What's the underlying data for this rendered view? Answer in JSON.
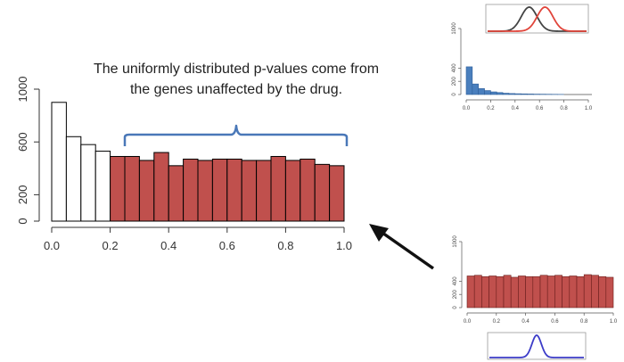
{
  "annotation": {
    "text": "The uniformly distributed p-values come from the genes unaffected by the drug.",
    "brace_color": "#4a78b8",
    "arrow_color": "#111111"
  },
  "chart_data": [
    {
      "id": "main-histogram",
      "type": "bar",
      "title": "",
      "xlabel": "",
      "ylabel": "",
      "bin_width": 0.05,
      "x": [
        0.025,
        0.075,
        0.125,
        0.175,
        0.225,
        0.275,
        0.325,
        0.375,
        0.425,
        0.475,
        0.525,
        0.575,
        0.625,
        0.675,
        0.725,
        0.775,
        0.825,
        0.875,
        0.925,
        0.975
      ],
      "values": [
        900,
        640,
        580,
        530,
        490,
        490,
        460,
        520,
        420,
        470,
        460,
        470,
        470,
        460,
        460,
        490,
        460,
        470,
        430,
        420
      ],
      "highlight_from": 0.2,
      "colors": {
        "plain_fill": "#ffffff",
        "highlight_fill": "#c0504d",
        "stroke": "#000000"
      },
      "xlim": [
        0,
        1.0
      ],
      "ylim": [
        0,
        1000
      ],
      "xticks": [
        0.0,
        0.2,
        0.4,
        0.6,
        0.8,
        1.0
      ],
      "xtick_labels": [
        "0.0",
        "0.2",
        "0.4",
        "0.6",
        "0.8",
        "1.0"
      ],
      "yticks": [
        0,
        200,
        600,
        1000
      ],
      "ytick_labels": [
        "0",
        "200",
        "600",
        "1000"
      ]
    },
    {
      "id": "top-right-densities",
      "type": "line",
      "series": [
        {
          "center": 0.42,
          "sd": 0.08,
          "color": "#444444"
        },
        {
          "center": 0.58,
          "sd": 0.08,
          "color": "#e0443a"
        }
      ],
      "xlim": [
        0,
        1
      ]
    },
    {
      "id": "blue-histogram",
      "type": "bar",
      "bin_width": 0.05,
      "x": [
        0.025,
        0.075,
        0.125,
        0.175,
        0.225,
        0.275,
        0.325,
        0.375,
        0.425,
        0.475,
        0.525,
        0.575,
        0.625,
        0.675,
        0.725,
        0.775
      ],
      "values": [
        420,
        160,
        90,
        60,
        40,
        30,
        20,
        15,
        12,
        10,
        8,
        6,
        5,
        4,
        3,
        2
      ],
      "color": "#4a7fbd",
      "xlim": [
        0,
        1.0
      ],
      "ylim": [
        0,
        1000
      ],
      "xticks": [
        0.0,
        0.2,
        0.4,
        0.6,
        0.8,
        1.0
      ],
      "xtick_labels": [
        "0.0",
        "0.2",
        "0.4",
        "0.6",
        "0.8",
        "1.0"
      ],
      "yticks": [
        0,
        200,
        400,
        1000
      ],
      "ytick_labels": [
        "0",
        "200",
        "400",
        "1000"
      ]
    },
    {
      "id": "bottom-right-histogram",
      "type": "bar",
      "bin_width": 0.05,
      "x": [
        0.025,
        0.075,
        0.125,
        0.175,
        0.225,
        0.275,
        0.325,
        0.375,
        0.425,
        0.475,
        0.525,
        0.575,
        0.625,
        0.675,
        0.725,
        0.775,
        0.825,
        0.875,
        0.925,
        0.975
      ],
      "values": [
        480,
        490,
        470,
        480,
        470,
        490,
        460,
        480,
        470,
        470,
        490,
        480,
        490,
        470,
        480,
        470,
        500,
        490,
        470,
        460
      ],
      "color": "#c0504d",
      "xlim": [
        0,
        1.0
      ],
      "ylim": [
        0,
        1000
      ],
      "xticks": [
        0.0,
        0.2,
        0.4,
        0.6,
        0.8,
        1.0
      ],
      "xtick_labels": [
        "0.0",
        "0.2",
        "0.4",
        "0.6",
        "0.8",
        "1.0"
      ],
      "yticks": [
        0,
        200,
        400,
        1000
      ],
      "ytick_labels": [
        "0",
        "200",
        "400",
        "1000"
      ]
    },
    {
      "id": "bottom-density",
      "type": "line",
      "series": [
        {
          "center": 0.5,
          "sd": 0.05,
          "color": "#3c3cc8"
        }
      ],
      "xlim": [
        0,
        1
      ]
    }
  ]
}
